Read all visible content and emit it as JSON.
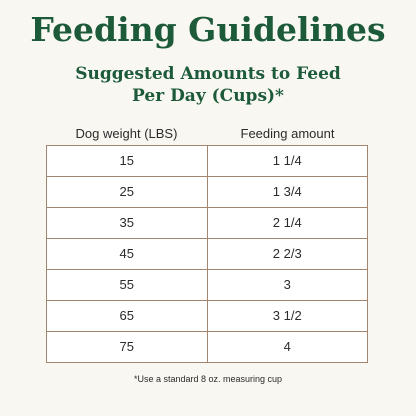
{
  "title": "Feeding Guidelines",
  "subtitle": {
    "line1": "Suggested Amounts to Feed",
    "line2": "Per Day (Cups)*"
  },
  "table": {
    "headers": [
      "Dog weight (LBS)",
      "Feeding amount"
    ],
    "rows": [
      [
        "15",
        "1 1/4"
      ],
      [
        "25",
        "1 3/4"
      ],
      [
        "35",
        "2 1/4"
      ],
      [
        "45",
        "2 2/3"
      ],
      [
        "55",
        "3"
      ],
      [
        "65",
        "3 1/2"
      ],
      [
        "75",
        "4"
      ]
    ]
  },
  "footnote": "*Use a standard 8 oz. measuring cup",
  "colors": {
    "title_green": "#1c5a3a",
    "border_brown": "#a2856f",
    "background": "#f8f7f2"
  }
}
